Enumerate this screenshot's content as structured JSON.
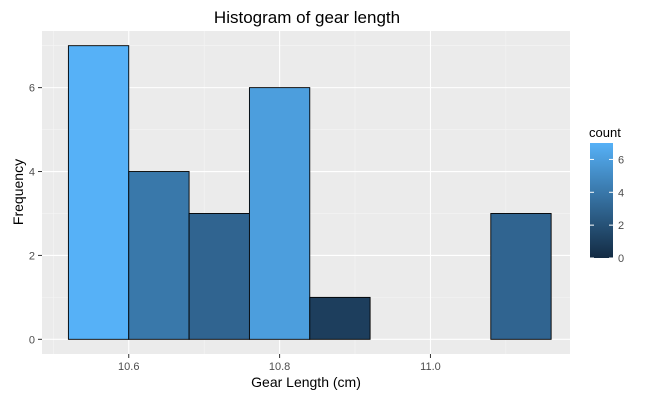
{
  "chart_data": {
    "type": "histogram",
    "title": "Histogram of gear length",
    "xlabel": "Gear Length (cm)",
    "ylabel": "Frequency",
    "xlim": [
      10.485,
      11.185
    ],
    "ylim": [
      -0.35,
      7.35
    ],
    "x_ticks": [
      10.6,
      10.8,
      11.0
    ],
    "x_tick_labels": [
      "10.6",
      "10.8",
      "11.0"
    ],
    "y_ticks": [
      0,
      2,
      4,
      6
    ],
    "y_tick_labels": [
      "0",
      "2",
      "4",
      "6"
    ],
    "bins": [
      {
        "x_start": 10.52,
        "x_end": 10.6,
        "count": 7
      },
      {
        "x_start": 10.6,
        "x_end": 10.68,
        "count": 4
      },
      {
        "x_start": 10.68,
        "x_end": 10.76,
        "count": 3
      },
      {
        "x_start": 10.76,
        "x_end": 10.84,
        "count": 6
      },
      {
        "x_start": 10.84,
        "x_end": 10.92,
        "count": 1
      },
      {
        "x_start": 10.92,
        "x_end": 11.0,
        "count": 0
      },
      {
        "x_start": 11.0,
        "x_end": 11.08,
        "count": 0
      },
      {
        "x_start": 11.08,
        "x_end": 11.16,
        "count": 3
      }
    ],
    "grid": true,
    "legend": {
      "title": "count",
      "position": "right",
      "ticks": [
        0,
        2,
        4,
        6
      ],
      "tick_labels": [
        "0",
        "2",
        "4",
        "6"
      ],
      "range": [
        0,
        7
      ]
    },
    "colors": {
      "low": "#132b43",
      "high": "#56b1f7",
      "panel_background": "#ebebeb",
      "grid_major": "#ffffff",
      "bar_outline": "#000000"
    }
  }
}
